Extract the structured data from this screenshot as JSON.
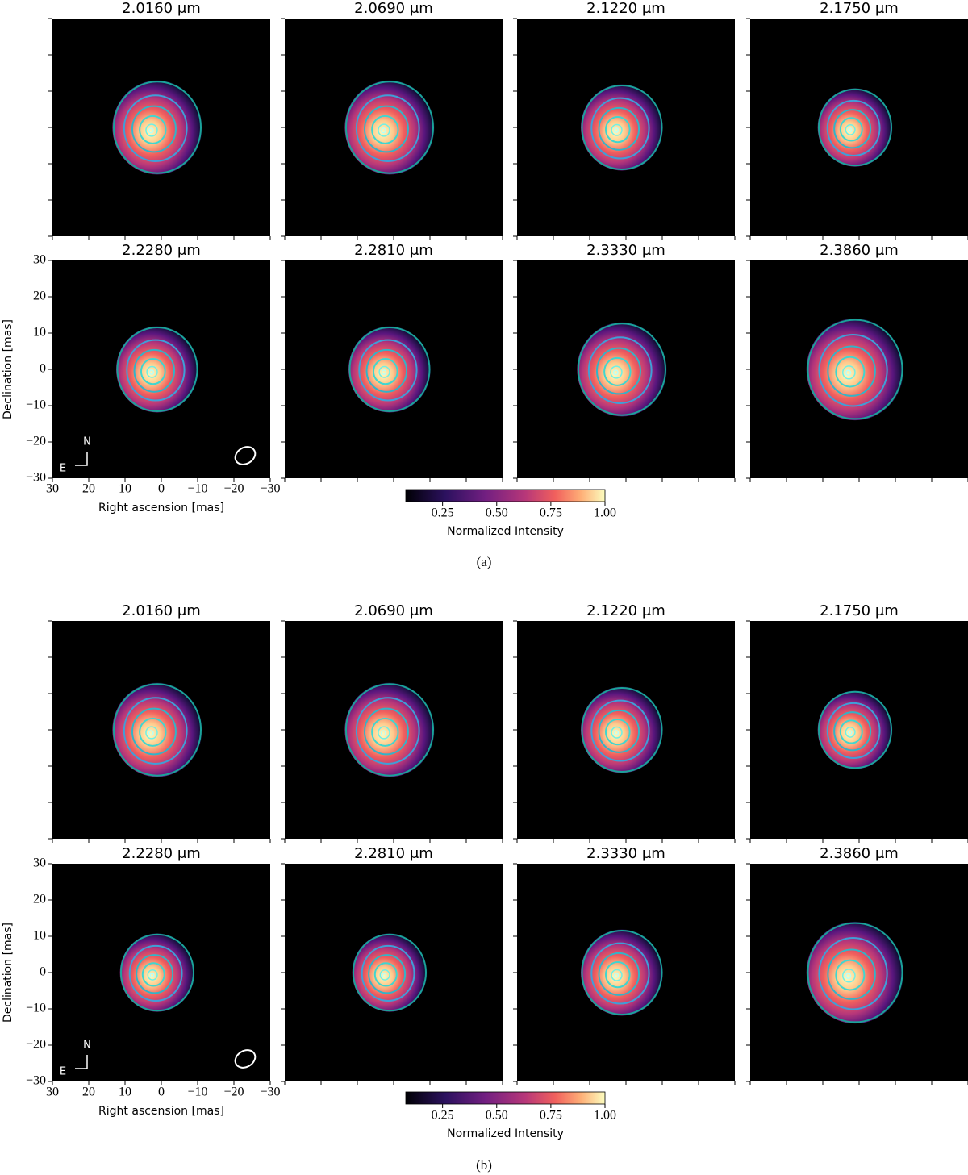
{
  "figures": [
    {
      "label": "(a)",
      "panels": [
        "2.0160 μm",
        "2.0690 μm",
        "2.1220 μm",
        "2.1750 μm",
        "2.2280 μm",
        "2.2810 μm",
        "2.3330 μm",
        "2.3860 μm"
      ],
      "xlabel": "Right ascension [mas]",
      "ylabel": "Declination [mas]",
      "xlim": [
        30,
        -30
      ],
      "ylim": [
        -30,
        30
      ],
      "xticks": [
        30,
        20,
        10,
        0,
        {
          "value": -10,
          "label": "−10"
        },
        {
          "value": -20,
          "label": "−20"
        },
        {
          "value": -30,
          "label": "−30"
        }
      ],
      "yticks": [
        30,
        20,
        10,
        0,
        {
          "value": -10,
          "label": "−10"
        },
        {
          "value": -20,
          "label": "−20"
        },
        {
          "value": -30,
          "label": "−30"
        }
      ],
      "compass": {
        "north": "N",
        "east": "E"
      },
      "colorbar": {
        "label": "Normalized Intensity",
        "clim": [
          0.08,
          1.0
        ],
        "ticks": [
          0.25,
          {
            "value": 0.5,
            "label": "0.50"
          },
          0.75,
          {
            "value": 1.0,
            "label": "1.00"
          }
        ]
      }
    },
    {
      "label": "(b)",
      "panels": [
        "2.0160 μm",
        "2.0690 μm",
        "2.1220 μm",
        "2.1750 μm",
        "2.2280 μm",
        "2.2810 μm",
        "2.3330 μm",
        "2.3860 μm"
      ],
      "xlabel": "Right ascension [mas]",
      "ylabel": "Declination [mas]",
      "xlim": [
        30,
        -30
      ],
      "ylim": [
        -30,
        30
      ],
      "xticks": [
        30,
        20,
        10,
        0,
        {
          "value": -10,
          "label": "−10"
        },
        {
          "value": -20,
          "label": "−20"
        },
        {
          "value": -30,
          "label": "−30"
        }
      ],
      "yticks": [
        30,
        20,
        10,
        0,
        {
          "value": -10,
          "label": "−10"
        },
        {
          "value": -20,
          "label": "−20"
        },
        {
          "value": -30,
          "label": "−30"
        }
      ],
      "compass": {
        "north": "N",
        "east": "E"
      },
      "colorbar": {
        "label": "Normalized Intensity",
        "clim": [
          0.08,
          1.0
        ],
        "ticks": [
          0.25,
          {
            "value": 0.5,
            "label": "0.50"
          },
          0.75,
          {
            "value": 1.0,
            "label": "1.00"
          }
        ]
      }
    }
  ]
}
